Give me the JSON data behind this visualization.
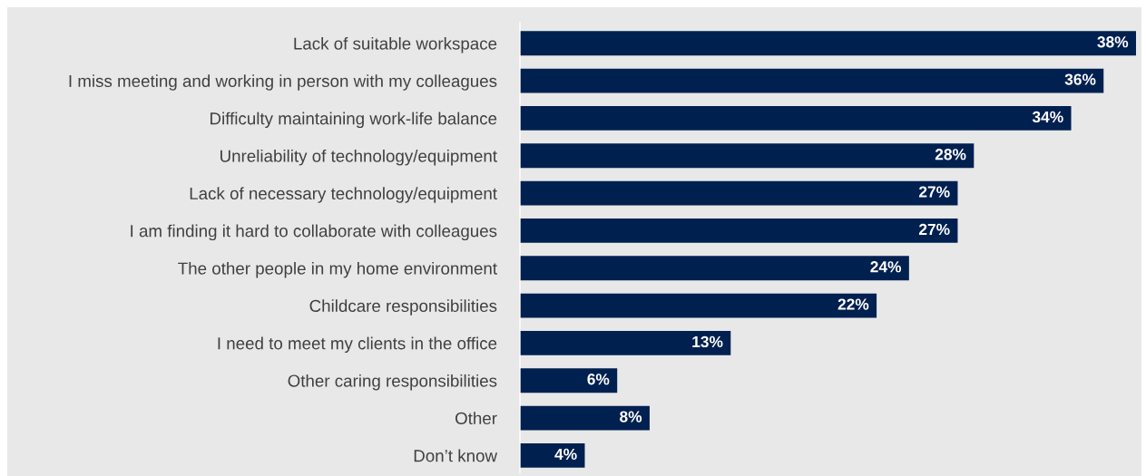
{
  "chart_data": {
    "type": "bar",
    "orientation": "horizontal",
    "categories": [
      "Lack of suitable workspace",
      "I miss meeting and working in person with my colleagues",
      "Difficulty maintaining work-life balance",
      "Unreliability of technology/equipment",
      "Lack of necessary technology/equipment",
      "I am finding it hard to collaborate with colleagues",
      "The other people in my home environment",
      "Childcare responsibilities",
      "I need to meet my clients in the office",
      "Other caring responsibilities",
      "Other",
      "Don’t know"
    ],
    "values": [
      38,
      36,
      34,
      28,
      27,
      27,
      24,
      22,
      13,
      6,
      8,
      4
    ],
    "value_labels": [
      "38%",
      "36%",
      "34%",
      "28%",
      "27%",
      "27%",
      "24%",
      "22%",
      "13%",
      "6%",
      "8%",
      "4%"
    ],
    "color": "#002050",
    "grid": false,
    "legend": false
  }
}
